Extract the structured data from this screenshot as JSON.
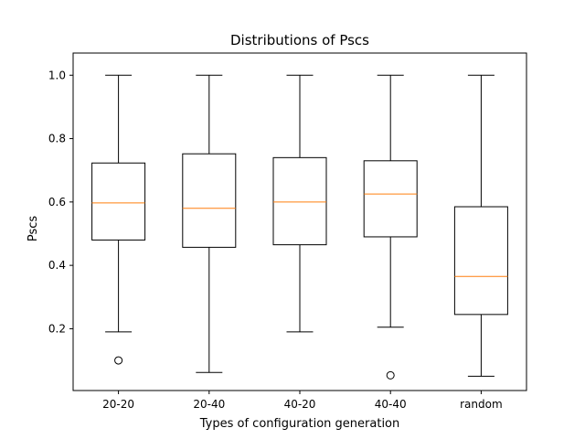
{
  "chart_data": {
    "type": "box",
    "title": "Distributions of Pscs",
    "xlabel": "Types of configuration generation",
    "ylabel": "Pscs",
    "ylim": [
      0.005,
      1.07
    ],
    "yticks": [
      0.2,
      0.4,
      0.6,
      0.8,
      1.0
    ],
    "ytick_labels": [
      "0.2",
      "0.4",
      "0.6",
      "0.8",
      "1.0"
    ],
    "grid": false,
    "colors": {
      "box": "#000000",
      "median": "#ff7f0e",
      "outlier": "#000000"
    },
    "categories": [
      "20-20",
      "20-40",
      "40-20",
      "40-40",
      "random"
    ],
    "boxes": [
      {
        "label": "20-20",
        "whisker_low": 0.19,
        "q1": 0.48,
        "median": 0.597,
        "q3": 0.723,
        "whisker_high": 1.0,
        "outliers": [
          0.1
        ]
      },
      {
        "label": "20-40",
        "whisker_low": 0.062,
        "q1": 0.457,
        "median": 0.58,
        "q3": 0.752,
        "whisker_high": 1.0,
        "outliers": []
      },
      {
        "label": "40-20",
        "whisker_low": 0.19,
        "q1": 0.465,
        "median": 0.6,
        "q3": 0.74,
        "whisker_high": 1.0,
        "outliers": []
      },
      {
        "label": "40-40",
        "whisker_low": 0.205,
        "q1": 0.49,
        "median": 0.625,
        "q3": 0.73,
        "whisker_high": 1.0,
        "outliers": [
          0.053
        ]
      },
      {
        "label": "random",
        "whisker_low": 0.05,
        "q1": 0.245,
        "median": 0.365,
        "q3": 0.585,
        "whisker_high": 1.0,
        "outliers": []
      }
    ]
  }
}
